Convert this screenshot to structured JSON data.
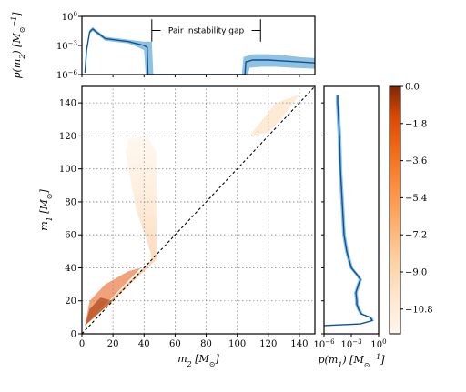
{
  "chart_data": [
    {
      "type": "heatmap",
      "panel": "main",
      "xlabel": "m_2 [M_⊙]",
      "ylabel": "m_1 [M_⊙]",
      "xlim": [
        0,
        150
      ],
      "ylim": [
        0,
        150
      ],
      "x_ticks": [
        "0",
        "20",
        "40",
        "60",
        "80",
        "100",
        "120",
        "140"
      ],
      "y_ticks": [
        "0",
        "20",
        "40",
        "60",
        "80",
        "100",
        "120",
        "140"
      ],
      "x_tick_values": [
        0,
        20,
        40,
        60,
        80,
        100,
        120,
        140
      ],
      "y_tick_values": [
        0,
        20,
        40,
        60,
        80,
        100,
        120,
        140
      ],
      "grid": true,
      "diagonal": "m1 = m2 (dashed)",
      "regions": [
        {
          "desc": "low-mass",
          "points": [
            [
              2,
              5
            ],
            [
              45,
              45
            ],
            [
              44,
              50
            ],
            [
              35,
              75
            ],
            [
              28,
              110
            ],
            [
              30,
              118
            ],
            [
              42,
              120
            ],
            [
              48,
              110
            ],
            [
              48,
              45
            ]
          ]
        },
        {
          "desc": "upper",
          "points": [
            [
              108,
              120
            ],
            [
              125,
              140
            ],
            [
              140,
              145
            ],
            [
              128,
              130
            ],
            [
              120,
              122
            ]
          ]
        }
      ],
      "colorbar": {
        "ticks": [
          "0.0",
          "−1.8",
          "−3.6",
          "−5.4",
          "−7.2",
          "−9.0",
          "−10.8"
        ],
        "tick_values": [
          0.0,
          -1.8,
          -3.6,
          -5.4,
          -7.2,
          -9.0,
          -10.8
        ],
        "range": [
          -12,
          0
        ]
      }
    },
    {
      "type": "area",
      "panel": "top-marginal",
      "ylabel": "p(m_2) [M_⊙^{-1}]",
      "ylim_log10": [
        -6,
        0
      ],
      "y_ticks": [
        "10^0",
        "10^{-3}",
        "10^{-6}"
      ],
      "y_tick_values": [
        0,
        -3,
        -6
      ],
      "x_tick_values": [
        0,
        20,
        40,
        60,
        80,
        100,
        120,
        140
      ],
      "annotation": "Pair instability gap",
      "gap_range": [
        45,
        115
      ],
      "median_log10": [
        [
          2,
          -5.8
        ],
        [
          3,
          -3.5
        ],
        [
          5,
          -1.6
        ],
        [
          7,
          -1.3
        ],
        [
          10,
          -1.7
        ],
        [
          15,
          -2.3
        ],
        [
          20,
          -2.4
        ],
        [
          25,
          -2.5
        ],
        [
          30,
          -2.6
        ],
        [
          35,
          -2.8
        ],
        [
          40,
          -3.0
        ],
        [
          42,
          -3.2
        ],
        [
          42.5,
          -6
        ],
        [
          105,
          -6
        ],
        [
          105.5,
          -4.7
        ],
        [
          110,
          -4.5
        ],
        [
          120,
          -4.5
        ],
        [
          130,
          -4.6
        ],
        [
          140,
          -4.7
        ],
        [
          150,
          -4.8
        ]
      ],
      "band_upper_log10": [
        [
          2,
          -5.5
        ],
        [
          3,
          -3.2
        ],
        [
          5,
          -1.4
        ],
        [
          7,
          -1.1
        ],
        [
          10,
          -1.5
        ],
        [
          15,
          -2.1
        ],
        [
          20,
          -2.2
        ],
        [
          25,
          -2.3
        ],
        [
          30,
          -2.4
        ],
        [
          35,
          -2.5
        ],
        [
          40,
          -2.6
        ],
        [
          45,
          -2.6
        ],
        [
          46,
          -6
        ],
        [
          103,
          -6
        ],
        [
          104,
          -4.2
        ],
        [
          110,
          -3.9
        ],
        [
          120,
          -3.9
        ],
        [
          130,
          -4.0
        ],
        [
          140,
          -4.2
        ],
        [
          150,
          -4.3
        ]
      ],
      "band_lower_log10": [
        [
          2,
          -6
        ],
        [
          3,
          -3.8
        ],
        [
          5,
          -1.8
        ],
        [
          7,
          -1.5
        ],
        [
          10,
          -1.9
        ],
        [
          15,
          -2.5
        ],
        [
          20,
          -2.6
        ],
        [
          25,
          -2.7
        ],
        [
          30,
          -2.8
        ],
        [
          35,
          -3.1
        ],
        [
          40,
          -3.5
        ],
        [
          41,
          -6
        ],
        [
          107,
          -6
        ],
        [
          108,
          -5.3
        ],
        [
          115,
          -5.2
        ],
        [
          125,
          -5.2
        ],
        [
          135,
          -5.3
        ],
        [
          150,
          -5.4
        ]
      ]
    },
    {
      "type": "area",
      "panel": "right-marginal",
      "xlabel": "p(m_1) [M_⊙^{-1}]",
      "xlim_log10": [
        -6,
        0
      ],
      "x_ticks": [
        "10^{-6}",
        "10^{-3}",
        "10^0"
      ],
      "x_tick_values": [
        -6,
        -3,
        0
      ],
      "y_tick_values": [
        0,
        20,
        40,
        60,
        80,
        100,
        120,
        140
      ],
      "median_log10": [
        [
          5,
          -6
        ],
        [
          6,
          -2.0
        ],
        [
          8,
          -0.7
        ],
        [
          10,
          -0.9
        ],
        [
          12,
          -1.9
        ],
        [
          15,
          -2.2
        ],
        [
          18,
          -2.4
        ],
        [
          20,
          -2.4
        ],
        [
          25,
          -2.5
        ],
        [
          30,
          -2.2
        ],
        [
          33,
          -2.0
        ],
        [
          36,
          -2.4
        ],
        [
          40,
          -3.0
        ],
        [
          50,
          -3.5
        ],
        [
          60,
          -3.8
        ],
        [
          80,
          -4.0
        ],
        [
          100,
          -4.2
        ],
        [
          120,
          -4.3
        ],
        [
          140,
          -4.5
        ],
        [
          145,
          -4.5
        ]
      ],
      "band_upper_log10": [
        [
          5,
          -6
        ],
        [
          6,
          -1.8
        ],
        [
          8,
          -0.5
        ],
        [
          10,
          -0.7
        ],
        [
          12,
          -1.7
        ],
        [
          15,
          -2.0
        ],
        [
          18,
          -2.2
        ],
        [
          20,
          -2.2
        ],
        [
          25,
          -2.3
        ],
        [
          30,
          -2.0
        ],
        [
          33,
          -1.8
        ],
        [
          36,
          -2.2
        ],
        [
          40,
          -2.8
        ],
        [
          50,
          -3.3
        ],
        [
          60,
          -3.6
        ],
        [
          80,
          -3.8
        ],
        [
          100,
          -4.0
        ],
        [
          120,
          -4.1
        ],
        [
          140,
          -4.3
        ],
        [
          145,
          -4.3
        ]
      ],
      "band_lower_log10": [
        [
          5,
          -6
        ],
        [
          6,
          -2.2
        ],
        [
          8,
          -0.9
        ],
        [
          10,
          -1.1
        ],
        [
          12,
          -2.1
        ],
        [
          15,
          -2.4
        ],
        [
          18,
          -2.6
        ],
        [
          20,
          -2.6
        ],
        [
          25,
          -2.7
        ],
        [
          30,
          -2.4
        ],
        [
          33,
          -2.2
        ],
        [
          36,
          -2.6
        ],
        [
          40,
          -3.2
        ],
        [
          50,
          -3.7
        ],
        [
          60,
          -4.0
        ],
        [
          80,
          -4.2
        ],
        [
          100,
          -4.4
        ],
        [
          120,
          -4.5
        ],
        [
          140,
          -4.7
        ],
        [
          145,
          -4.7
        ]
      ]
    }
  ]
}
